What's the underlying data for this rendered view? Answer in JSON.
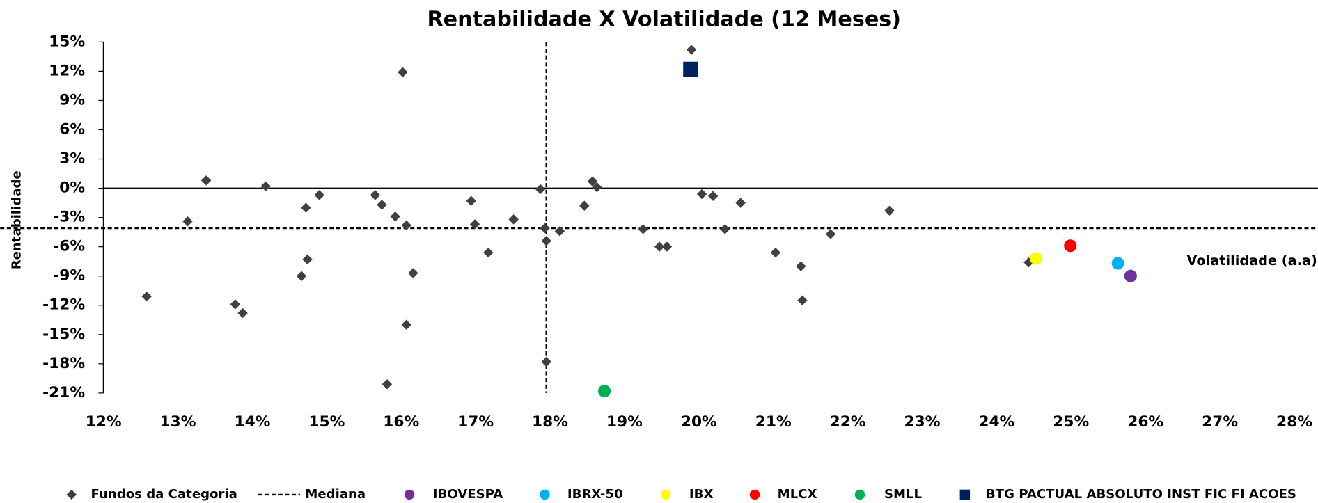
{
  "chart_data": {
    "type": "scatter",
    "title": "Rentabilidade X Volatilidade (12 Meses)",
    "x_label": "Volatilidade (a.a)",
    "y_label": "Rentabilidade",
    "xlim": [
      12,
      28
    ],
    "ylim": [
      -21,
      15
    ],
    "xticks": [
      {
        "value": 12,
        "label": "12%"
      },
      {
        "value": 13,
        "label": "13%"
      },
      {
        "value": 14,
        "label": "14%"
      },
      {
        "value": 15,
        "label": "15%"
      },
      {
        "value": 16,
        "label": "16%"
      },
      {
        "value": 17,
        "label": "17%"
      },
      {
        "value": 18,
        "label": "18%"
      },
      {
        "value": 19,
        "label": "19%"
      },
      {
        "value": 20,
        "label": "20%"
      },
      {
        "value": 21,
        "label": "21%"
      },
      {
        "value": 22,
        "label": "22%"
      },
      {
        "value": 23,
        "label": "23%"
      },
      {
        "value": 24,
        "label": "24%"
      },
      {
        "value": 25,
        "label": "25%"
      },
      {
        "value": 26,
        "label": "26%"
      },
      {
        "value": 27,
        "label": "27%"
      },
      {
        "value": 28,
        "label": "28%"
      }
    ],
    "yticks": [
      {
        "value": 15,
        "label": "15%"
      },
      {
        "value": 12,
        "label": "12%"
      },
      {
        "value": 9,
        "label": "9%"
      },
      {
        "value": 6,
        "label": "6%"
      },
      {
        "value": 3,
        "label": "3%"
      },
      {
        "value": 0,
        "label": "0%"
      },
      {
        "value": -3,
        "label": "-3%"
      },
      {
        "value": -6,
        "label": "-6%"
      },
      {
        "value": -9,
        "label": "-9%"
      },
      {
        "value": -12,
        "label": "-12%"
      },
      {
        "value": -15,
        "label": "-15%"
      },
      {
        "value": -18,
        "label": "-18%"
      },
      {
        "value": -21,
        "label": "-21%"
      }
    ],
    "median": {
      "name": "Mediana",
      "x": 17.95,
      "y": -4.1,
      "color": "#000000"
    },
    "series": [
      {
        "name": "Fundos da Categoria",
        "color": "#404040",
        "marker": "diamond",
        "x": [
          12.58,
          13.13,
          13.38,
          13.77,
          13.87,
          14.18,
          14.66,
          14.72,
          14.74,
          14.9,
          15.65,
          15.74,
          15.81,
          15.92,
          16.02,
          16.07,
          16.07,
          16.16,
          16.94,
          16.99,
          17.17,
          17.51,
          17.87,
          17.93,
          17.95,
          17.95,
          18.13,
          18.46,
          18.57,
          18.63,
          19.25,
          19.47,
          19.57,
          19.9,
          20.04,
          20.19,
          20.35,
          20.56,
          21.03,
          21.37,
          21.39,
          21.77,
          22.56,
          24.43
        ],
        "values": [
          -11.1,
          -3.4,
          0.8,
          -11.9,
          -12.8,
          0.2,
          -9.0,
          -2.0,
          -7.3,
          -0.7,
          -0.7,
          -1.7,
          -20.1,
          -2.9,
          11.9,
          -3.8,
          -14.0,
          -8.7,
          -1.3,
          -3.7,
          -6.6,
          -3.2,
          -0.1,
          -4.1,
          -5.4,
          -17.8,
          -4.4,
          -1.8,
          0.7,
          0.1,
          -4.2,
          -6.0,
          -6.0,
          14.2,
          -0.6,
          -0.8,
          -4.2,
          -1.5,
          -6.6,
          -8.0,
          -11.5,
          -4.7,
          -2.3,
          -7.6
        ]
      },
      {
        "name": "IBOVESPA",
        "color": "#7030a0",
        "marker": "circle",
        "x": [
          25.8
        ],
        "values": [
          -9.0
        ]
      },
      {
        "name": "IBRX-50",
        "color": "#00b0f0",
        "marker": "circle",
        "x": [
          25.63
        ],
        "values": [
          -7.7
        ]
      },
      {
        "name": "IBX",
        "color": "#ffff00",
        "marker": "circle",
        "x": [
          24.53
        ],
        "values": [
          -7.2
        ]
      },
      {
        "name": "MLCX",
        "color": "#ff0000",
        "marker": "circle",
        "x": [
          24.99
        ],
        "values": [
          -5.9
        ]
      },
      {
        "name": "SMLL",
        "color": "#00b050",
        "marker": "circle",
        "x": [
          18.73
        ],
        "values": [
          -20.8
        ]
      },
      {
        "name": "BTG PACTUAL ABSOLUTO INST FIC FI ACOES",
        "color": "#002060",
        "marker": "square",
        "x": [
          19.89
        ],
        "values": [
          12.2
        ]
      }
    ]
  }
}
